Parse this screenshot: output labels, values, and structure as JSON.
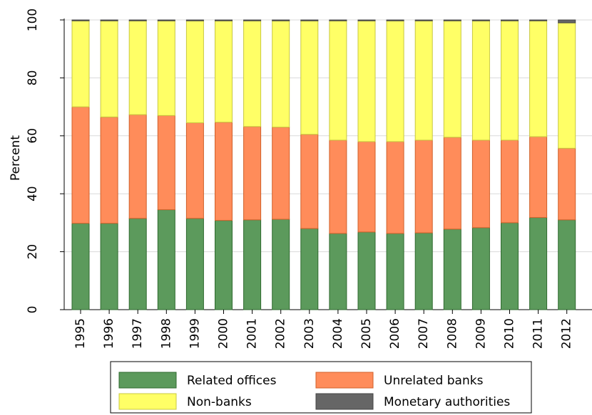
{
  "chart_data": {
    "type": "stacked-bar",
    "y_label": "Percent",
    "categories": [
      "1995",
      "1996",
      "1997",
      "1998",
      "1999",
      "2000",
      "2001",
      "2002",
      "2003",
      "2004",
      "2005",
      "2006",
      "2007",
      "2008",
      "2009",
      "2010",
      "2011",
      "2012"
    ],
    "series": [
      {
        "name": "Related offices",
        "color": "#5c9a5c",
        "values": [
          29.8,
          29.8,
          31.5,
          34.5,
          31.5,
          30.8,
          31,
          31.2,
          28,
          26.3,
          26.8,
          26.3,
          26.5,
          27.8,
          28.3,
          30,
          31.8,
          31
        ]
      },
      {
        "name": "Unrelated banks",
        "color": "#ff8c5a",
        "values": [
          40.2,
          36.7,
          35.8,
          32.5,
          33,
          33.9,
          32.2,
          31.8,
          32.5,
          32.2,
          31.2,
          31.7,
          32,
          31.7,
          30.2,
          28.5,
          27.9,
          24.7
        ]
      },
      {
        "name": "Non-banks",
        "color": "#ffff66",
        "values": [
          29.7,
          33.2,
          32.4,
          32.7,
          35.2,
          35,
          36.5,
          36.7,
          39.2,
          41.2,
          41.7,
          41.7,
          41.2,
          40.2,
          41.2,
          41.2,
          40,
          43.3
        ]
      },
      {
        "name": "Monetary authorities",
        "color": "#666666",
        "values": [
          0.3,
          0.3,
          0.3,
          0.3,
          0.3,
          0.3,
          0.3,
          0.3,
          0.3,
          0.3,
          0.3,
          0.3,
          0.3,
          0.3,
          0.3,
          0.3,
          0.3,
          1.0
        ]
      }
    ],
    "ylim": [
      0,
      100
    ],
    "yticks": [
      0,
      20,
      40,
      60,
      80,
      100
    ],
    "grid": true
  }
}
